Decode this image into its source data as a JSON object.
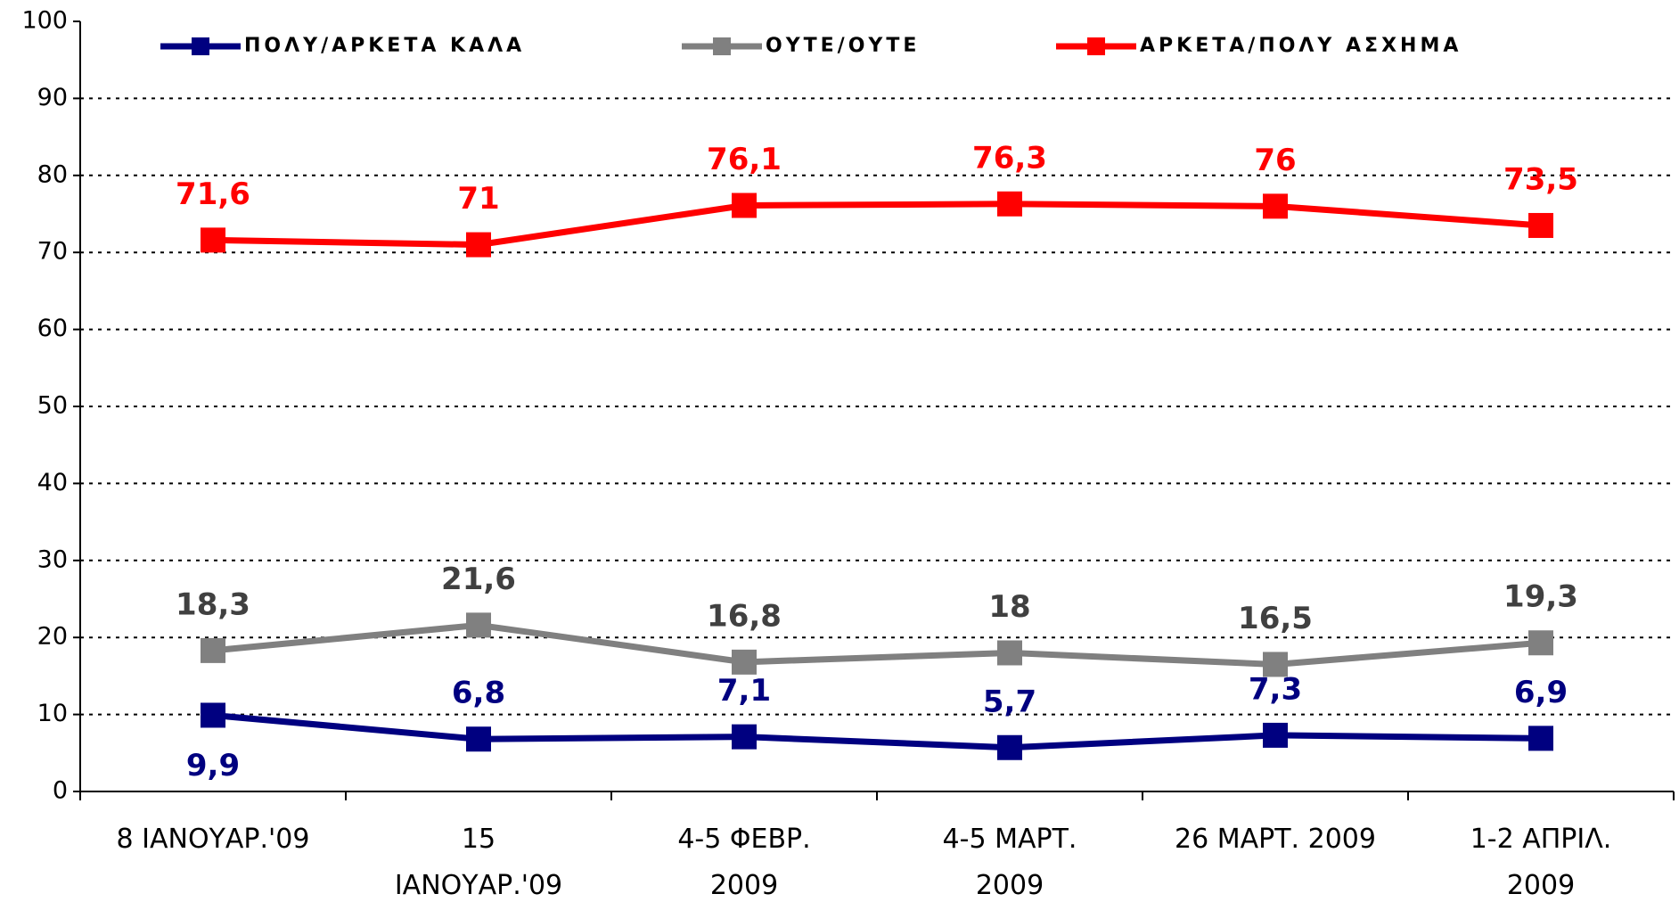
{
  "chart_data": {
    "type": "line",
    "categories": [
      "8 ΙΑΝΟΥΑΡ.'09",
      "15\nΙΑΝΟΥΑΡ.'09",
      "4-5 ΦΕΒΡ.\n2009",
      "4-5 ΜΑΡΤ.\n2009",
      "26 ΜΑΡΤ. 2009",
      "1-2 ΑΠΡΙΛ.\n2009"
    ],
    "series": [
      {
        "name": "ΠΟΛΥ/ΑΡΚΕΤΑ ΚΑΛΑ",
        "color": "#000080",
        "values": [
          9.9,
          6.8,
          7.1,
          5.7,
          7.3,
          6.9
        ],
        "value_labels": [
          "9,9",
          "6,8",
          "7,1",
          "5,7",
          "7,3",
          "6,9"
        ]
      },
      {
        "name": "ΟΥΤΕ/ΟΥΤΕ",
        "color": "#808080",
        "values": [
          18.3,
          21.6,
          16.8,
          18,
          16.5,
          19.3
        ],
        "value_labels": [
          "18,3",
          "21,6",
          "16,8",
          "18",
          "16,5",
          "19,3"
        ]
      },
      {
        "name": "ΑΡΚΕΤΑ/ΠΟΛΥ ΑΣΧΗΜΑ",
        "color": "#ff0000",
        "values": [
          71.6,
          71,
          76.1,
          76.3,
          76,
          73.5
        ],
        "value_labels": [
          "71,6",
          "71",
          "76,1",
          "76,3",
          "76",
          "73,5"
        ]
      }
    ],
    "ylim": [
      0,
      100
    ],
    "yticks": [
      0,
      10,
      20,
      30,
      40,
      50,
      60,
      70,
      80,
      90,
      100
    ],
    "grid": true,
    "legend": "top"
  }
}
